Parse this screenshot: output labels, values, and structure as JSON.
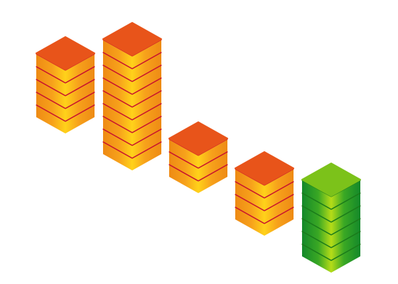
{
  "stacks": [
    {
      "layers": 5,
      "theme": "orange"
    },
    {
      "layers": 9,
      "theme": "orange"
    },
    {
      "layers": 3,
      "theme": "orange"
    },
    {
      "layers": 4,
      "theme": "orange"
    },
    {
      "layers": 6,
      "theme": "green"
    }
  ],
  "themes": {
    "orange": {
      "top": "#e8541a",
      "edge": "#c8102e",
      "side_light": "#ffd21a",
      "side_mid": "#f7a21b",
      "side_dark": "#ee8a14"
    },
    "green": {
      "top": "#7cc21a",
      "edge": "#1a7a1a",
      "side_light": "#b5dc18",
      "side_mid": "#3aa824",
      "side_dark": "#14882a"
    }
  }
}
